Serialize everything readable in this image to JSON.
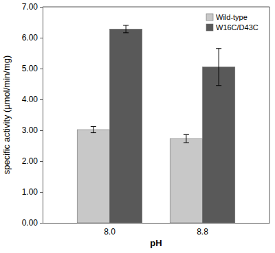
{
  "chart_data": {
    "type": "bar",
    "x_label": "pH",
    "y_label": "specific activity (µmol/min/mg)",
    "categories": [
      "8.0",
      "8.8"
    ],
    "series": [
      {
        "name": "Wild-type",
        "color": "#c8c8c8",
        "values": [
          3.02,
          2.73
        ],
        "errors": [
          0.1,
          0.13
        ]
      },
      {
        "name": "W16C/D43C",
        "color": "#595959",
        "values": [
          6.28,
          5.05
        ],
        "errors": [
          0.12,
          0.6
        ]
      }
    ],
    "ylim": [
      0,
      7
    ],
    "yticks": [
      {
        "value": 0,
        "label": "0.00"
      },
      {
        "value": 1,
        "label": "1.00"
      },
      {
        "value": 2,
        "label": "2.00"
      },
      {
        "value": 3,
        "label": "3.00"
      },
      {
        "value": 4,
        "label": "4.00"
      },
      {
        "value": 5,
        "label": "5.00"
      },
      {
        "value": 6,
        "label": "6.00"
      },
      {
        "value": 7,
        "label": "7.00"
      }
    ],
    "grid": false,
    "legend": "upper right"
  }
}
